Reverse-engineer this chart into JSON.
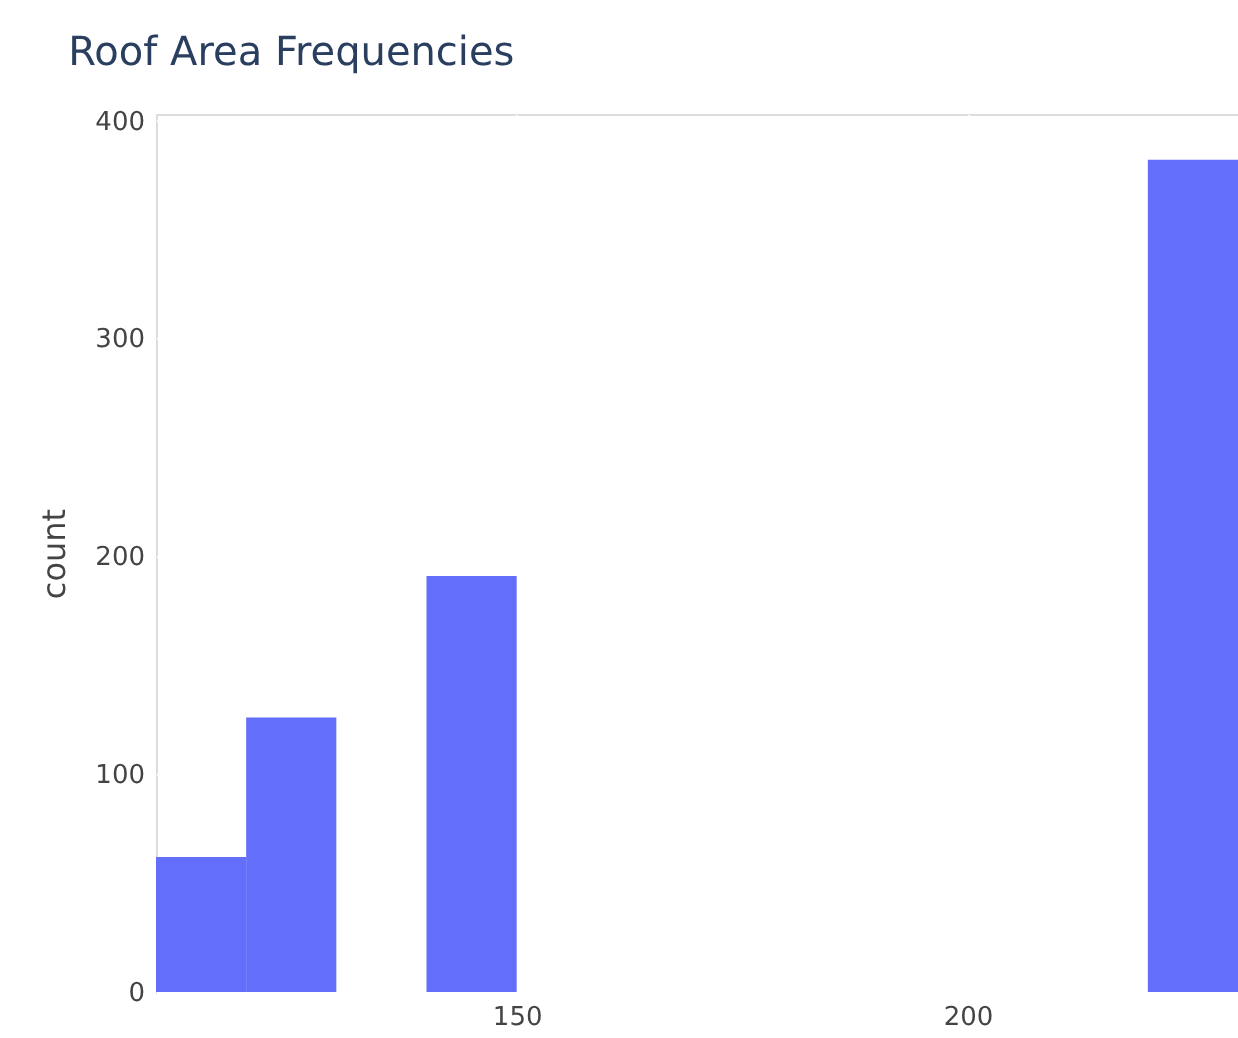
{
  "chart_data": {
    "type": "histogram",
    "title": "Roof Area Frequencies",
    "ylabel": "count",
    "bins": [
      110,
      120,
      130,
      140,
      150,
      160,
      170,
      180,
      190,
      200,
      210,
      220,
      230
    ],
    "values": [
      62,
      126,
      0,
      191,
      0,
      0,
      0,
      0,
      0,
      0,
      0,
      382
    ],
    "color": "#636efa",
    "xlim": [
      110,
      230
    ],
    "xticks": [
      150,
      200
    ],
    "ylim": [
      0,
      403
    ],
    "yticks": [
      0,
      100,
      200,
      300,
      400
    ],
    "grid": true
  }
}
